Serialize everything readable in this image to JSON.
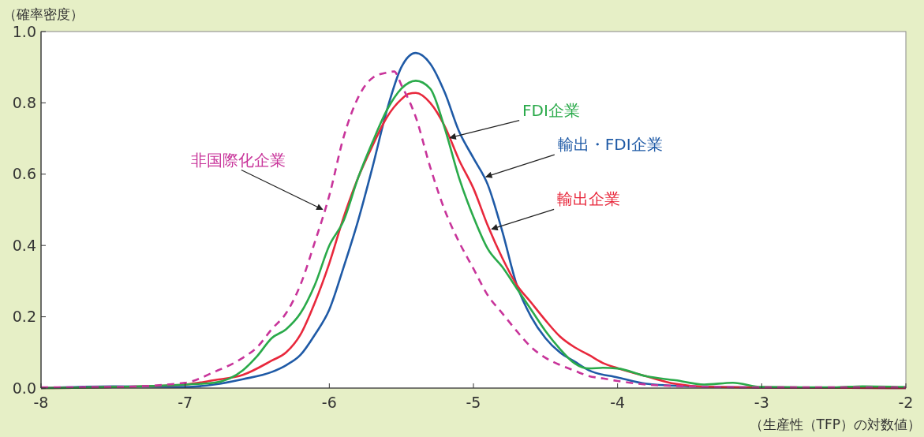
{
  "chart_data": {
    "type": "line",
    "ylabel": "（確率密度）",
    "xlabel": "（生産性（TFP）の対数値）",
    "xlim": [
      -8,
      -2
    ],
    "xticks": [
      -8,
      -7,
      -6,
      -5,
      -4,
      -3,
      -2
    ],
    "ylim": [
      0,
      1
    ],
    "yticks": [
      {
        "value": 0,
        "label": "0.0"
      },
      {
        "value": 0.2,
        "label": "0.2"
      },
      {
        "value": 0.4,
        "label": "0.4"
      },
      {
        "value": 0.6,
        "label": "0.6"
      },
      {
        "value": 0.8,
        "label": "0.8"
      },
      {
        "value": 1,
        "label": "1.0"
      }
    ],
    "grid": false,
    "series": [
      {
        "name": "輸出・FDI企業",
        "color": "#1f5aa6",
        "line_style": "solid",
        "x": [
          -8,
          -7.5,
          -7,
          -6.8,
          -6.6,
          -6.4,
          -6.3,
          -6.2,
          -6.1,
          -6,
          -5.9,
          -5.8,
          -5.7,
          -5.6,
          -5.5,
          -5.4,
          -5.3,
          -5.2,
          -5.1,
          -5,
          -4.9,
          -4.8,
          -4.7,
          -4.6,
          -4.5,
          -4.4,
          -4.3,
          -4.2,
          -4,
          -3.8,
          -3.5,
          -3,
          -2
        ],
        "values": [
          0,
          0.005,
          0.003,
          0.01,
          0.025,
          0.045,
          0.064,
          0.093,
          0.15,
          0.22,
          0.34,
          0.47,
          0.62,
          0.78,
          0.9,
          0.94,
          0.91,
          0.83,
          0.72,
          0.645,
          0.57,
          0.44,
          0.29,
          0.2,
          0.14,
          0.1,
          0.075,
          0.05,
          0.03,
          0.012,
          0.005,
          0.002,
          0
        ]
      },
      {
        "name": "輸出企業",
        "color": "#e8283c",
        "line_style": "solid",
        "x": [
          -8,
          -7.5,
          -7,
          -6.8,
          -6.6,
          -6.4,
          -6.3,
          -6.2,
          -6.1,
          -6,
          -5.9,
          -5.8,
          -5.7,
          -5.6,
          -5.5,
          -5.45,
          -5.4,
          -5.3,
          -5.2,
          -5.1,
          -5,
          -4.9,
          -4.8,
          -4.7,
          -4.6,
          -4.5,
          -4.4,
          -4.3,
          -4.2,
          -4.1,
          -4,
          -3.8,
          -3.6,
          -3.4,
          -3,
          -2
        ],
        "values": [
          0,
          0.003,
          0.01,
          0.022,
          0.037,
          0.077,
          0.1,
          0.15,
          0.24,
          0.35,
          0.48,
          0.59,
          0.68,
          0.76,
          0.81,
          0.825,
          0.828,
          0.8,
          0.735,
          0.64,
          0.56,
          0.455,
          0.365,
          0.29,
          0.24,
          0.19,
          0.145,
          0.115,
          0.093,
          0.07,
          0.056,
          0.033,
          0.012,
          0.004,
          0.002,
          0
        ]
      },
      {
        "name": "FDI企業",
        "color": "#2aaa4a",
        "line_style": "solid",
        "x": [
          -8,
          -7.5,
          -7,
          -6.8,
          -6.6,
          -6.5,
          -6.4,
          -6.3,
          -6.2,
          -6.1,
          -6,
          -5.9,
          -5.8,
          -5.7,
          -5.6,
          -5.5,
          -5.4,
          -5.3,
          -5.2,
          -5.1,
          -5,
          -4.9,
          -4.8,
          -4.7,
          -4.6,
          -4.5,
          -4.4,
          -4.3,
          -4.2,
          -4.1,
          -4,
          -3.8,
          -3.6,
          -3.4,
          -3.2,
          -3,
          -2.5,
          -2.3,
          -2
        ],
        "values": [
          0,
          0.003,
          0.01,
          0.015,
          0.05,
          0.09,
          0.14,
          0.165,
          0.21,
          0.29,
          0.4,
          0.47,
          0.59,
          0.69,
          0.78,
          0.84,
          0.862,
          0.84,
          0.73,
          0.59,
          0.48,
          0.39,
          0.34,
          0.28,
          0.22,
          0.16,
          0.11,
          0.07,
          0.055,
          0.057,
          0.055,
          0.033,
          0.022,
          0.01,
          0.015,
          0.003,
          0.002,
          0.005,
          0.003
        ]
      },
      {
        "name": "非国際化企業",
        "color": "#c8349a",
        "line_style": "dashed",
        "x": [
          -8,
          -7.5,
          -7,
          -6.8,
          -6.6,
          -6.5,
          -6.4,
          -6.3,
          -6.2,
          -6.1,
          -6,
          -5.9,
          -5.8,
          -5.7,
          -5.6,
          -5.55,
          -5.5,
          -5.4,
          -5.3,
          -5.2,
          -5.1,
          -5,
          -4.9,
          -4.8,
          -4.7,
          -4.6,
          -4.5,
          -4.4,
          -4.3,
          -4.2,
          -4.1,
          -4,
          -3.8,
          -3.6,
          -3.4,
          -3,
          -2
        ],
        "values": [
          0.002,
          0.003,
          0.015,
          0.045,
          0.085,
          0.115,
          0.165,
          0.21,
          0.29,
          0.41,
          0.54,
          0.705,
          0.815,
          0.87,
          0.885,
          0.888,
          0.85,
          0.76,
          0.62,
          0.5,
          0.41,
          0.335,
          0.26,
          0.21,
          0.16,
          0.115,
          0.085,
          0.065,
          0.049,
          0.034,
          0.027,
          0.02,
          0.01,
          0.006,
          0.004,
          0.002,
          0.002
        ]
      }
    ]
  }
}
